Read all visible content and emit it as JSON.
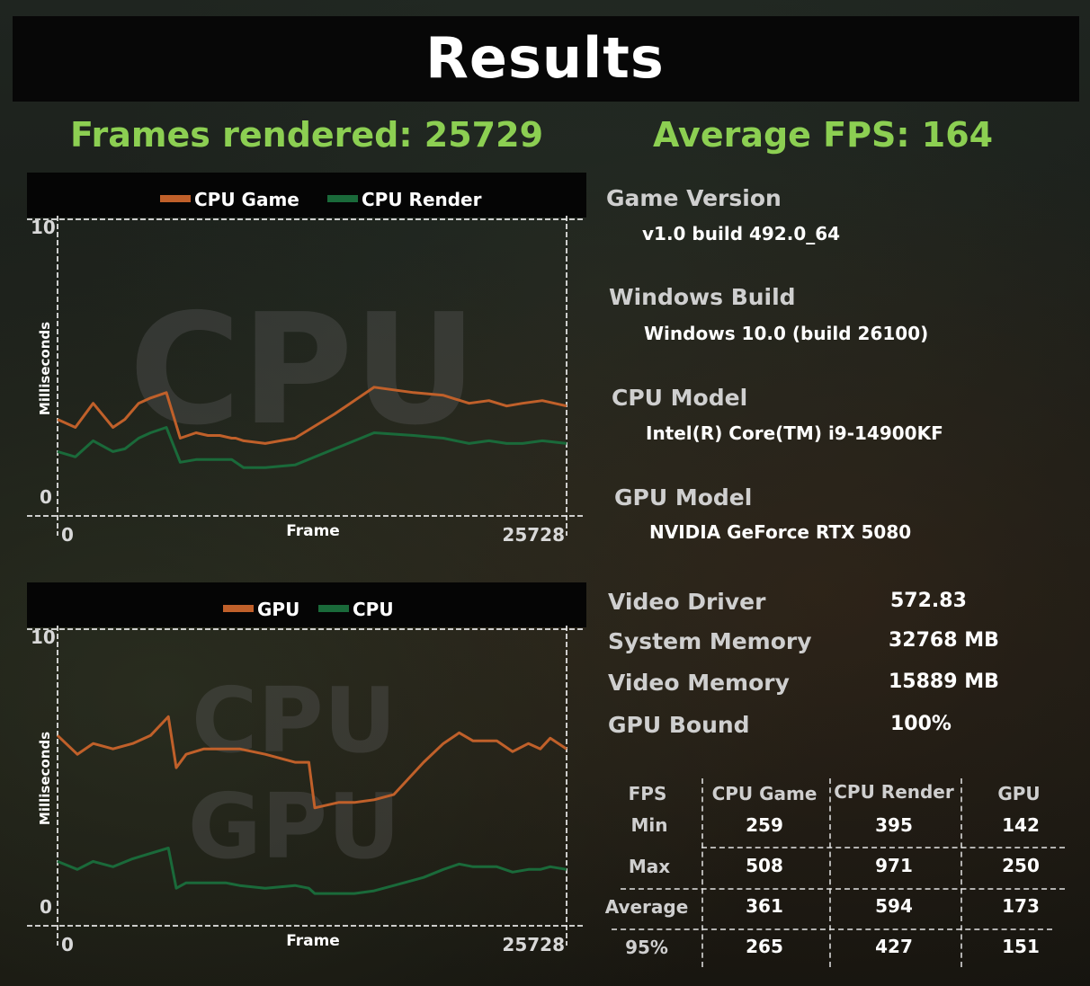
{
  "title": "Results",
  "frames_rendered": "Frames rendered: 25729",
  "average_fps": "Average FPS: 164",
  "info": {
    "game_version_label": "Game Version",
    "game_version_value": "v1.0 build 492.0_64",
    "windows_build_label": "Windows Build",
    "windows_build_value": "Windows 10.0 (build 26100)",
    "cpu_model_label": "CPU Model",
    "cpu_model_value": "Intel(R) Core(TM) i9-14900KF",
    "gpu_model_label": "GPU Model",
    "gpu_model_value": "NVIDIA GeForce RTX 5080"
  },
  "specs": [
    {
      "label": "Video Driver",
      "value": "572.83"
    },
    {
      "label": "System Memory",
      "value": "32768 MB"
    },
    {
      "label": "Video Memory",
      "value": "15889 MB"
    },
    {
      "label": "GPU Bound",
      "value": "100%"
    }
  ],
  "fps_table": {
    "headers": [
      "FPS",
      "CPU Game",
      "CPU Render",
      "GPU"
    ],
    "rows": [
      {
        "label": "Min",
        "values": [
          "259",
          "395",
          "142"
        ]
      },
      {
        "label": "Max",
        "values": [
          "508",
          "971",
          "250"
        ]
      },
      {
        "label": "Average",
        "values": [
          "361",
          "594",
          "173"
        ]
      },
      {
        "label": "95%",
        "values": [
          "265",
          "427",
          "151"
        ]
      }
    ]
  },
  "colors": {
    "accent_green": "#8ccf52",
    "series_orange": "#c0602a",
    "series_green": "#1a6a3a"
  },
  "chart_data": [
    {
      "type": "line",
      "watermark": [
        "CPU"
      ],
      "xlabel": "Frame",
      "ylabel": "Milliseconds",
      "xlim": [
        0,
        25728
      ],
      "ylim": [
        0,
        10
      ],
      "x_tick_labels": [
        "0",
        "25728"
      ],
      "y_tick_labels": [
        "10",
        "0"
      ],
      "legend_position": "top",
      "series": [
        {
          "name": "CPU Game",
          "color": "#c0602a",
          "x": [
            0,
            900,
            1800,
            2800,
            3400,
            4100,
            4700,
            5500,
            6200,
            7000,
            7600,
            8200,
            8800,
            9000,
            9400,
            10500,
            12000,
            14000,
            16000,
            18000,
            19500,
            20800,
            21800,
            22700,
            23500,
            24500,
            25728
          ],
          "y": [
            3.0,
            2.7,
            3.6,
            2.7,
            3.0,
            3.6,
            3.8,
            4.0,
            2.3,
            2.5,
            2.4,
            2.4,
            2.3,
            2.3,
            2.2,
            2.1,
            2.3,
            3.2,
            4.2,
            4.0,
            3.9,
            3.6,
            3.7,
            3.5,
            3.6,
            3.7,
            3.5
          ]
        },
        {
          "name": "CPU Render",
          "color": "#1a6a3a",
          "x": [
            0,
            900,
            1800,
            2800,
            3400,
            4100,
            4700,
            5500,
            6200,
            7000,
            7600,
            8200,
            8800,
            9000,
            9400,
            10500,
            12000,
            14000,
            16000,
            18000,
            19500,
            20800,
            21800,
            22700,
            23500,
            24500,
            25728
          ],
          "y": [
            1.8,
            1.6,
            2.2,
            1.8,
            1.9,
            2.3,
            2.5,
            2.7,
            1.4,
            1.5,
            1.5,
            1.5,
            1.5,
            1.4,
            1.2,
            1.2,
            1.3,
            1.9,
            2.5,
            2.4,
            2.3,
            2.1,
            2.2,
            2.1,
            2.1,
            2.2,
            2.1
          ]
        }
      ]
    },
    {
      "type": "line",
      "watermark": [
        "CPU",
        "GPU"
      ],
      "xlabel": "Frame",
      "ylabel": "Milliseconds",
      "xlim": [
        0,
        25728
      ],
      "ylim": [
        0,
        10
      ],
      "x_tick_labels": [
        "0",
        "25728"
      ],
      "y_tick_labels": [
        "10",
        "0"
      ],
      "legend_position": "top",
      "series": [
        {
          "name": "GPU",
          "color": "#c0602a",
          "x": [
            0,
            1000,
            1800,
            2800,
            3800,
            4700,
            5600,
            6000,
            6500,
            7400,
            8500,
            9200,
            10500,
            12000,
            12700,
            13000,
            14200,
            15000,
            16000,
            17000,
            18500,
            19500,
            20300,
            21000,
            22200,
            23000,
            23800,
            24400,
            24900,
            25728
          ],
          "y": [
            6.5,
            5.8,
            6.2,
            6.0,
            6.2,
            6.5,
            7.2,
            5.3,
            5.8,
            6.0,
            6.0,
            6.0,
            5.8,
            5.5,
            5.5,
            3.8,
            4.0,
            4.0,
            4.1,
            4.3,
            5.5,
            6.2,
            6.6,
            6.3,
            6.3,
            5.9,
            6.2,
            6.0,
            6.4,
            6.0
          ]
        },
        {
          "name": "CPU",
          "color": "#1a6a3a",
          "x": [
            0,
            1000,
            1800,
            2800,
            3800,
            4700,
            5600,
            6000,
            6500,
            7400,
            8500,
            9200,
            10500,
            12000,
            12700,
            13000,
            14200,
            15000,
            16000,
            17000,
            18500,
            19500,
            20300,
            21000,
            22200,
            23000,
            23800,
            24400,
            24900,
            25728
          ],
          "y": [
            1.8,
            1.5,
            1.8,
            1.6,
            1.9,
            2.1,
            2.3,
            0.8,
            1.0,
            1.0,
            1.0,
            0.9,
            0.8,
            0.9,
            0.8,
            0.6,
            0.6,
            0.6,
            0.7,
            0.9,
            1.2,
            1.5,
            1.7,
            1.6,
            1.6,
            1.4,
            1.5,
            1.5,
            1.6,
            1.5
          ]
        }
      ]
    }
  ]
}
